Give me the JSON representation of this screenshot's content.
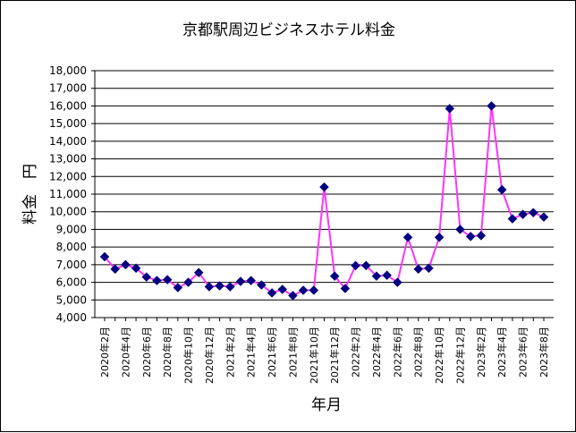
{
  "chart_data": {
    "type": "line",
    "title": "京都駅周辺ビジネスホテル料金",
    "xlabel": "年月",
    "ylabel": "料金　円",
    "ylim": [
      4000,
      18000
    ],
    "ytick_step": 1000,
    "yticks": [
      "4,000",
      "5,000",
      "6,000",
      "7,000",
      "8,000",
      "9,000",
      "10,000",
      "11,000",
      "12,000",
      "13,000",
      "14,000",
      "15,000",
      "16,000",
      "17,000",
      "18,000"
    ],
    "grid": true,
    "legend": "none",
    "line_color": "#ff33ff",
    "marker_color": "#000080",
    "x": [
      "2020年2月",
      "2020年3月",
      "2020年4月",
      "2020年5月",
      "2020年6月",
      "2020年7月",
      "2020年8月",
      "2020年9月",
      "2020年10月",
      "2020年11月",
      "2020年12月",
      "2021年1月",
      "2021年2月",
      "2021年3月",
      "2021年4月",
      "2021年5月",
      "2021年6月",
      "2021年7月",
      "2021年8月",
      "2021年9月",
      "2021年10月",
      "2021年11月",
      "2021年12月",
      "2022年1月",
      "2022年2月",
      "2022年3月",
      "2022年4月",
      "2022年5月",
      "2022年6月",
      "2022年7月",
      "2022年8月",
      "2022年9月",
      "2022年10月",
      "2022年11月",
      "2022年12月",
      "2023年1月",
      "2023年2月",
      "2023年3月",
      "2023年4月",
      "2023年5月",
      "2023年6月",
      "2023年7月",
      "2023年8月"
    ],
    "xtick_labels": [
      "2020年2月",
      "2020年4月",
      "2020年6月",
      "2020年8月",
      "2020年10月",
      "2020年12月",
      "2021年2月",
      "2021年4月",
      "2021年6月",
      "2021年8月",
      "2021年10月",
      "2021年12月",
      "2022年2月",
      "2022年4月",
      "2022年6月",
      "2022年8月",
      "2022年10月",
      "2022年12月",
      "2023年2月",
      "2023年4月",
      "2023年6月",
      "2023年8月"
    ],
    "series": [
      {
        "values": [
          7450,
          6750,
          7000,
          6800,
          6300,
          6100,
          6150,
          5700,
          6000,
          6550,
          5750,
          5800,
          5750,
          6050,
          6100,
          5850,
          5400,
          5600,
          5250,
          5550,
          5550,
          11400,
          6350,
          5650,
          6950,
          6950,
          6350,
          6400,
          6000,
          8550,
          6750,
          6800,
          8550,
          15850,
          9000,
          8600,
          8650,
          16000,
          11250,
          9600,
          9850,
          9950,
          9700
        ]
      }
    ]
  }
}
